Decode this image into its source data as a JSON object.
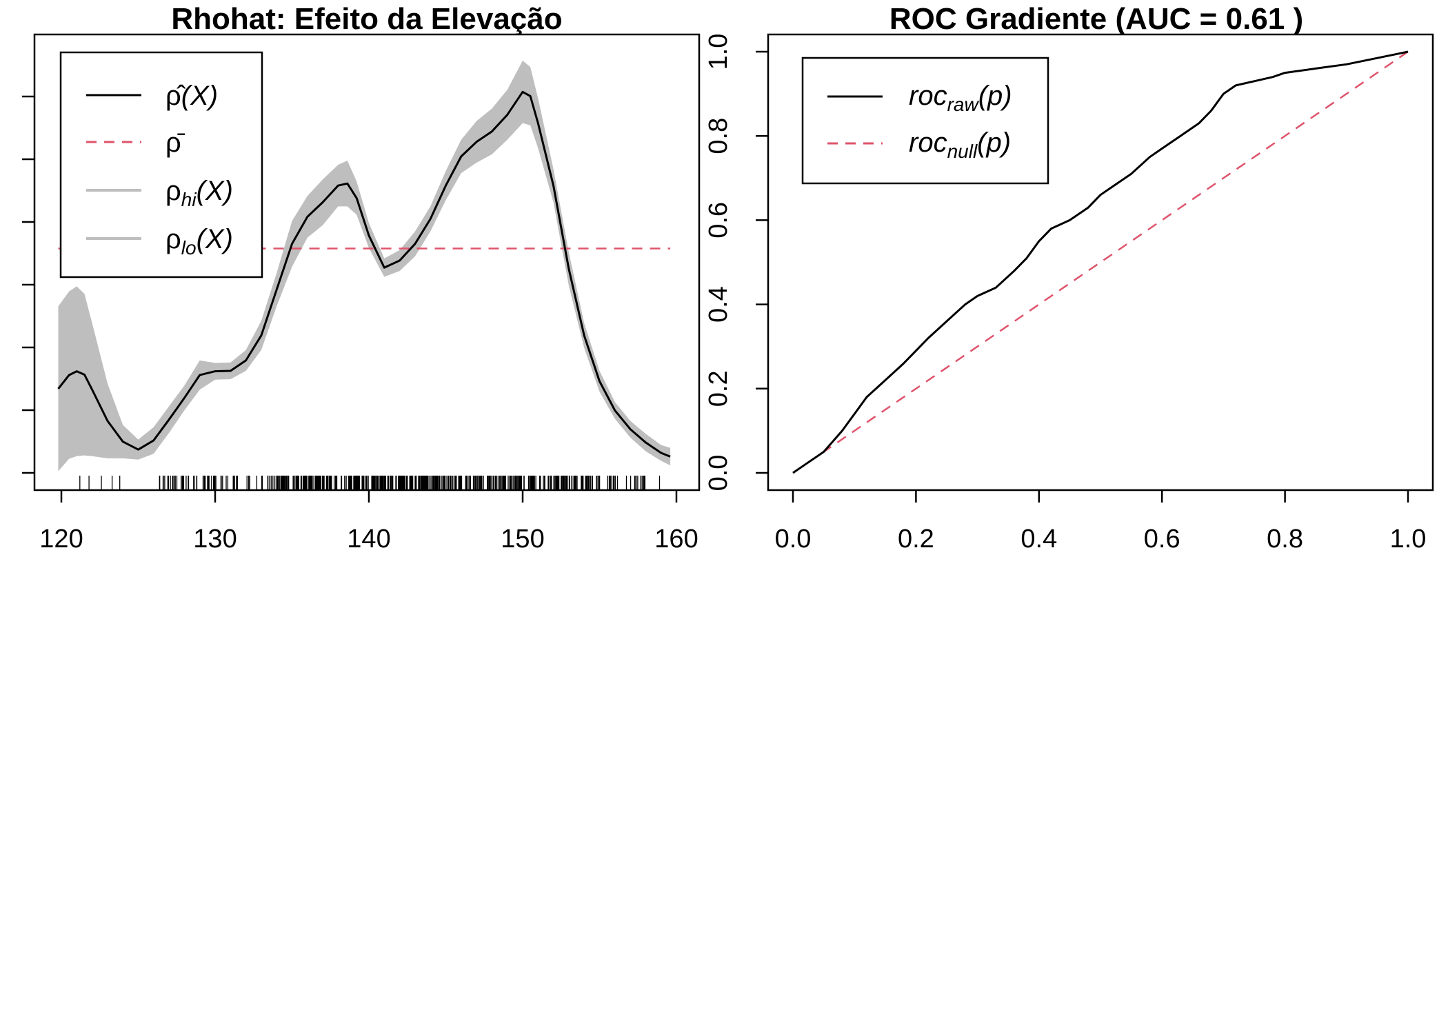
{
  "colors": {
    "line": "#000000",
    "reference": "#DF536B",
    "band": "#BEBEBE",
    "background": "#FFFFFF"
  },
  "chart_data": [
    {
      "type": "line",
      "title": "Rhohat: Efeito da Elevação",
      "xlabel": "",
      "ylabel": "",
      "xlim": [
        120,
        160
      ],
      "x_ticks": [
        "120",
        "130",
        "140",
        "150",
        "160"
      ],
      "y_ticks_unlabeled": 7,
      "grid": false,
      "legend_position": "top-left",
      "legend": [
        {
          "symbol": "ρ̂",
          "sub": "",
          "arg": "(X)",
          "style": "solid"
        },
        {
          "symbol": "ρ̄",
          "sub": "",
          "arg": "",
          "style": "dashed"
        },
        {
          "symbol": "ρ",
          "sub": "hi",
          "arg": "(X)",
          "style": "band"
        },
        {
          "symbol": "ρ",
          "sub": "lo",
          "arg": "(X)",
          "style": "band"
        }
      ],
      "reference_level": 0.539,
      "x": [
        119.8,
        120.5,
        121.0,
        121.5,
        122.0,
        123.0,
        124.0,
        125.0,
        126.0,
        127.0,
        128.0,
        129.0,
        130.0,
        131.0,
        132.0,
        133.0,
        134.0,
        135.0,
        136.0,
        137.0,
        138.0,
        138.6,
        139.2,
        140.0,
        141.0,
        142.0,
        143.0,
        144.0,
        145.0,
        146.0,
        147.0,
        148.0,
        149.0,
        150.0,
        150.5,
        151.0,
        152.0,
        153.0,
        154.0,
        155.0,
        156.0,
        157.0,
        158.0,
        159.0,
        159.6
      ],
      "series": [
        {
          "name": "ρ̂(X)",
          "values": [
            0.202,
            0.235,
            0.244,
            0.236,
            0.2,
            0.125,
            0.075,
            0.056,
            0.078,
            0.128,
            0.18,
            0.235,
            0.244,
            0.245,
            0.27,
            0.33,
            0.44,
            0.55,
            0.615,
            0.65,
            0.69,
            0.695,
            0.66,
            0.57,
            0.493,
            0.51,
            0.55,
            0.61,
            0.69,
            0.76,
            0.795,
            0.82,
            0.86,
            0.915,
            0.905,
            0.84,
            0.69,
            0.49,
            0.33,
            0.22,
            0.15,
            0.105,
            0.073,
            0.048,
            0.039
          ]
        },
        {
          "name": "ρhi(X)",
          "values": [
            0.4,
            0.436,
            0.448,
            0.43,
            0.36,
            0.215,
            0.115,
            0.08,
            0.11,
            0.16,
            0.21,
            0.27,
            0.264,
            0.265,
            0.295,
            0.365,
            0.48,
            0.605,
            0.665,
            0.705,
            0.74,
            0.75,
            0.7,
            0.6,
            0.515,
            0.535,
            0.58,
            0.64,
            0.725,
            0.8,
            0.845,
            0.875,
            0.92,
            0.99,
            0.975,
            0.9,
            0.73,
            0.53,
            0.36,
            0.245,
            0.17,
            0.125,
            0.094,
            0.067,
            0.06
          ]
        },
        {
          "name": "ρlo(X)",
          "values": [
            0.004,
            0.034,
            0.04,
            0.042,
            0.04,
            0.035,
            0.035,
            0.032,
            0.046,
            0.096,
            0.15,
            0.2,
            0.224,
            0.225,
            0.245,
            0.295,
            0.4,
            0.495,
            0.565,
            0.595,
            0.64,
            0.64,
            0.62,
            0.54,
            0.471,
            0.485,
            0.52,
            0.58,
            0.655,
            0.72,
            0.745,
            0.765,
            0.8,
            0.84,
            0.835,
            0.78,
            0.65,
            0.45,
            0.3,
            0.195,
            0.13,
            0.085,
            0.052,
            0.029,
            0.018
          ]
        }
      ]
    },
    {
      "type": "line",
      "title": "ROC Gradiente (AUC = 0.61 )",
      "xlabel": "",
      "ylabel": "",
      "xlim": [
        0,
        1
      ],
      "ylim": [
        0,
        1
      ],
      "x_ticks": [
        "0.0",
        "0.2",
        "0.4",
        "0.6",
        "0.8",
        "1.0"
      ],
      "y_ticks": [
        "0.0",
        "0.2",
        "0.4",
        "0.6",
        "0.8",
        "1.0"
      ],
      "grid": false,
      "legend_position": "top-left",
      "legend": [
        {
          "symbol": "roc",
          "sub": "raw",
          "arg": "(p)",
          "style": "solid"
        },
        {
          "symbol": "roc",
          "sub": "null",
          "arg": "(p)",
          "style": "dashed"
        }
      ],
      "series": [
        {
          "name": "roc_raw(p)",
          "x": [
            0,
            0.02,
            0.05,
            0.08,
            0.1,
            0.12,
            0.15,
            0.18,
            0.2,
            0.22,
            0.25,
            0.28,
            0.3,
            0.33,
            0.36,
            0.38,
            0.4,
            0.42,
            0.45,
            0.48,
            0.5,
            0.52,
            0.55,
            0.58,
            0.6,
            0.63,
            0.66,
            0.68,
            0.7,
            0.71,
            0.72,
            0.75,
            0.78,
            0.8,
            0.85,
            0.9,
            0.95,
            1.0
          ],
          "values": [
            0,
            0.02,
            0.05,
            0.1,
            0.14,
            0.18,
            0.22,
            0.26,
            0.29,
            0.32,
            0.36,
            0.4,
            0.42,
            0.44,
            0.48,
            0.51,
            0.55,
            0.58,
            0.6,
            0.63,
            0.66,
            0.68,
            0.71,
            0.75,
            0.77,
            0.8,
            0.83,
            0.86,
            0.9,
            0.91,
            0.92,
            0.93,
            0.94,
            0.95,
            0.96,
            0.97,
            0.985,
            1.0
          ]
        },
        {
          "name": "roc_null(p)",
          "x": [
            0,
            1
          ],
          "values": [
            0,
            1
          ]
        }
      ]
    }
  ]
}
